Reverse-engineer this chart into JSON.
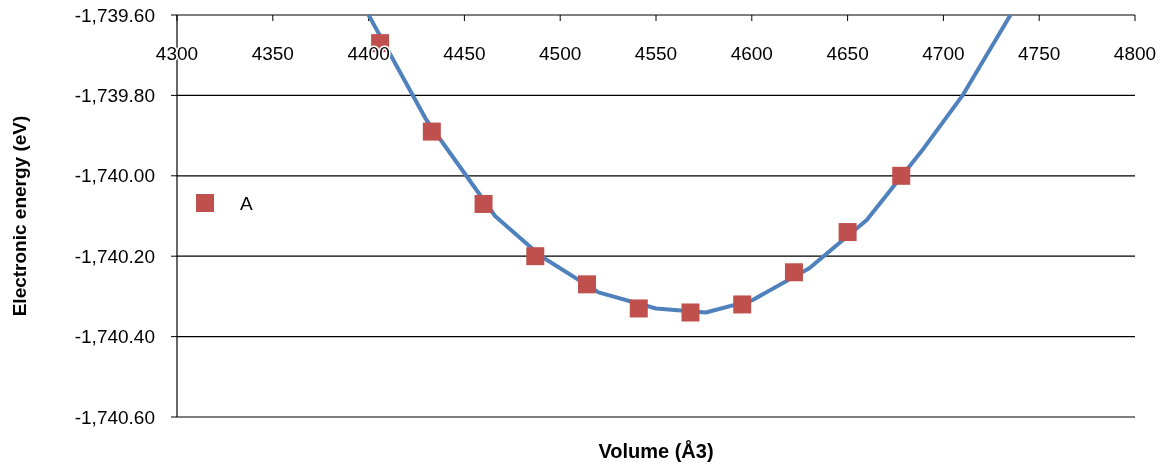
{
  "chart_data": {
    "type": "scatter",
    "xlabel": "Volume (Å3)",
    "ylabel": "Electronic energy (eV)",
    "xlim": [
      4300,
      4800
    ],
    "xticks": [
      4300,
      4350,
      4400,
      4450,
      4500,
      4550,
      4600,
      4650,
      4700,
      4750,
      4800
    ],
    "ylim": [
      -1740.6,
      -1739.6
    ],
    "yticks": [
      {
        "value": -1740.6,
        "label": "-1,740.60"
      },
      {
        "value": -1740.4,
        "label": "-1,740.40"
      },
      {
        "value": -1740.2,
        "label": "-1,740.20"
      },
      {
        "value": -1740.0,
        "label": "-1,740.00"
      },
      {
        "value": -1739.8,
        "label": "-1,739.80"
      },
      {
        "value": -1739.6,
        "label": "-1,739.60"
      }
    ],
    "grid": "y",
    "legend": "left",
    "series": [
      {
        "type": "line",
        "color": "#4f81bd",
        "marker": "none",
        "x": [
          4400,
          4430,
          4466,
          4490,
          4520,
          4550,
          4576,
          4600,
          4630,
          4660,
          4690,
          4710,
          4735
        ],
        "values": [
          -1739.6,
          -1739.86,
          -1740.1,
          -1740.2,
          -1740.29,
          -1740.33,
          -1740.34,
          -1740.31,
          -1740.23,
          -1740.11,
          -1739.93,
          -1739.8,
          -1739.6
        ]
      },
      {
        "name": "A",
        "color": "#c0504d",
        "marker": "square",
        "x": [
          4406,
          4433,
          4460,
          4487,
          4514,
          4541,
          4568,
          4595,
          4622,
          4650,
          4678
        ],
        "values": [
          -1739.67,
          -1739.89,
          -1740.07,
          -1740.2,
          -1740.27,
          -1740.33,
          -1740.34,
          -1740.32,
          -1740.24,
          -1740.14,
          -1740.0
        ]
      }
    ]
  }
}
